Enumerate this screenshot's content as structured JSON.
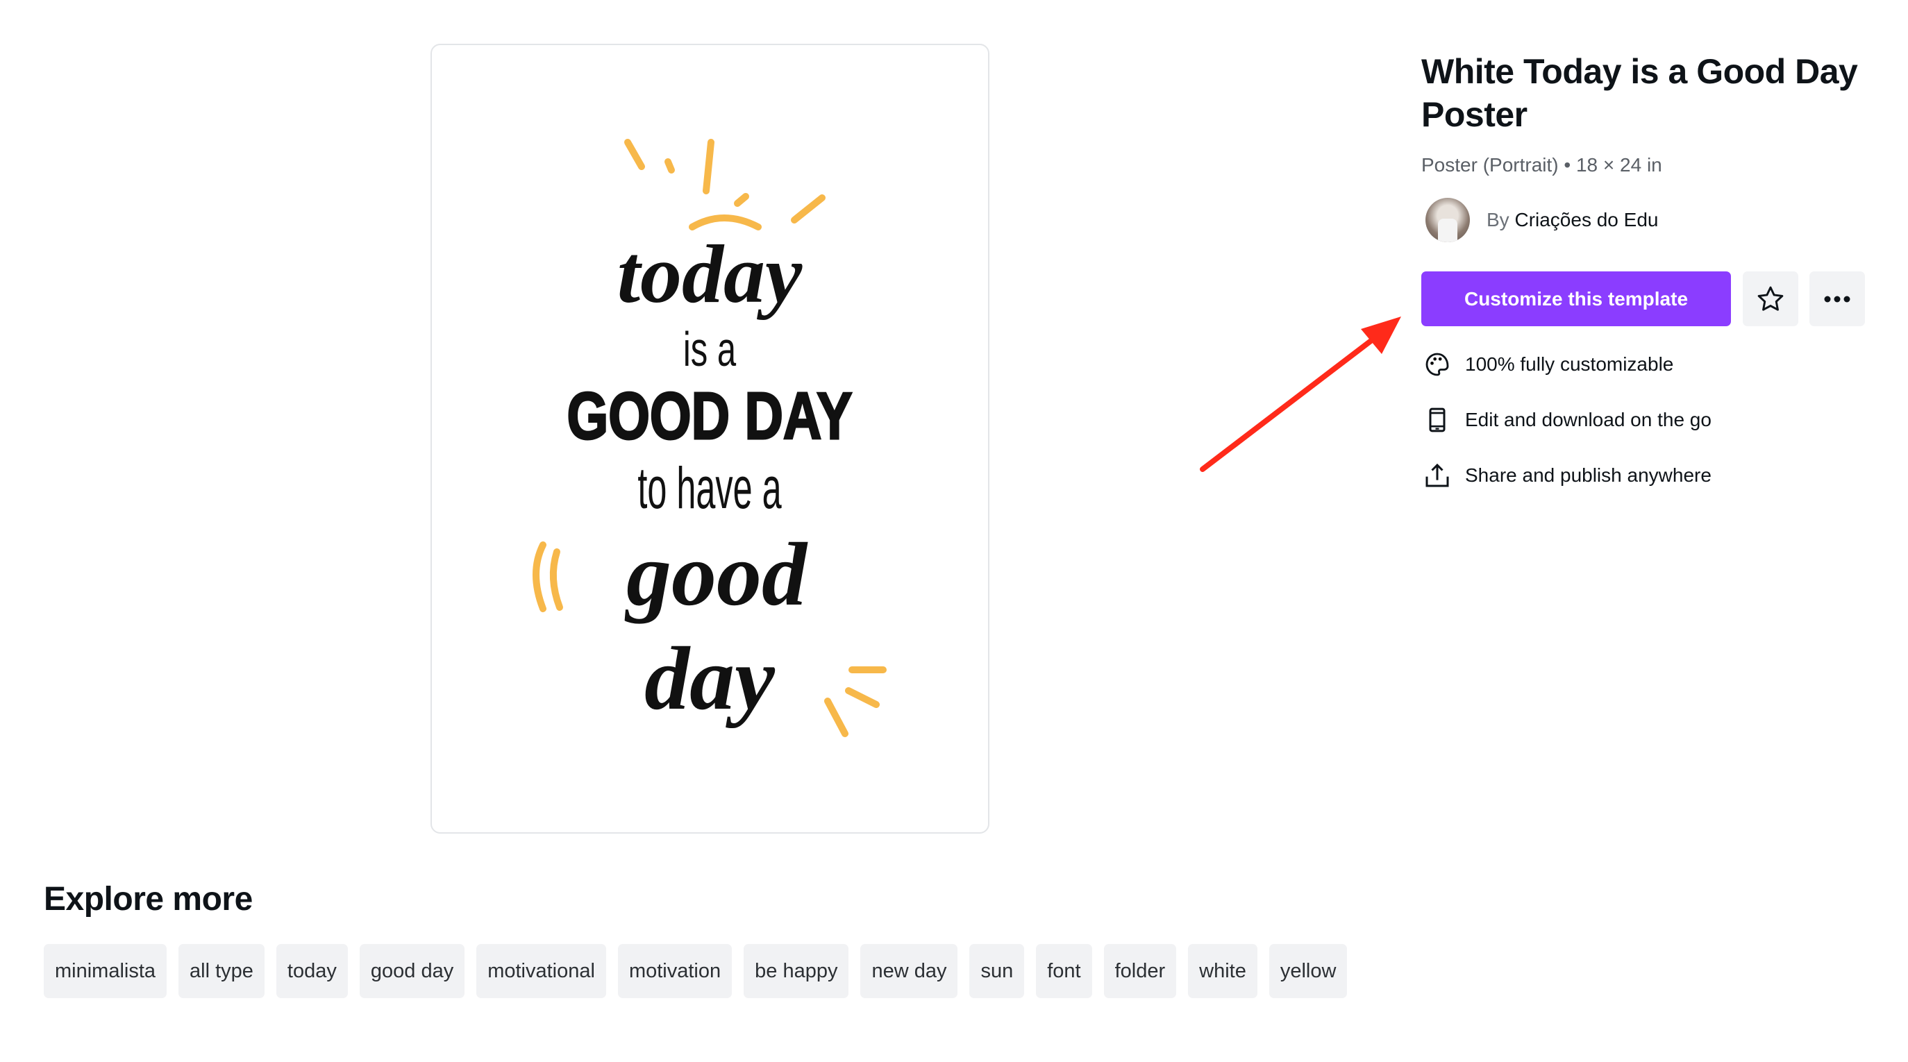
{
  "poster": {
    "lines": [
      "today",
      "is a",
      "GOOD DAY",
      "to have a",
      "good",
      "day"
    ],
    "accent_color": "#f7b84a"
  },
  "template": {
    "title": "White Today is a Good Day Poster",
    "subtitle": "Poster (Portrait) • 18 × 24 in",
    "author_prefix": "By",
    "author_name": "Criações do Edu",
    "customize_label": "Customize this template",
    "brand_color": "#8b3dff"
  },
  "features": [
    {
      "icon": "palette-icon",
      "label": "100% fully customizable"
    },
    {
      "icon": "phone-icon",
      "label": "Edit and download on the go"
    },
    {
      "icon": "share-upload-icon",
      "label": "Share and publish anywhere"
    }
  ],
  "annotation": {
    "arrow_color": "#ff2a1a"
  },
  "explore": {
    "heading": "Explore more",
    "tags": [
      "minimalista",
      "all type",
      "today",
      "good day",
      "motivational",
      "motivation",
      "be happy",
      "new day",
      "sun",
      "font",
      "folder",
      "white",
      "yellow"
    ]
  }
}
